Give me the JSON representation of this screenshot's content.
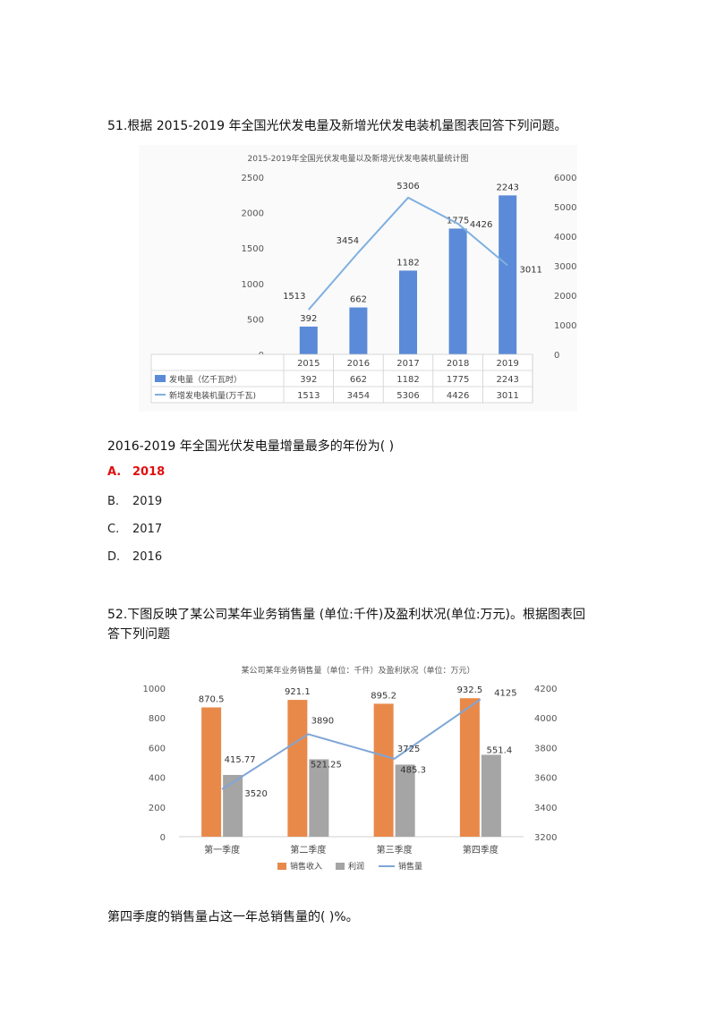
{
  "q51": {
    "stem": "51.根据 2015-2019 年全国光伏发电量及新增光伏发电装机量图表回答下列问题。",
    "question": "2016-2019 年全国光伏发电量增量最多的年份为(    )",
    "options": [
      {
        "letter": "A.",
        "text": "2018"
      },
      {
        "letter": "B.",
        "text": "2019"
      },
      {
        "letter": "C.",
        "text": "2017"
      },
      {
        "letter": "D.",
        "text": "2016"
      }
    ],
    "answer_color": "#e01010"
  },
  "q52": {
    "stem_line1": "52.下图反映了某公司某年业务销售量 (单位:千件)及盈利状况(单位:万元)。根据图表回",
    "stem_line2": "答下列问题",
    "question": "第四季度的销售量占这一年总销售量的(    )%。"
  },
  "chart_data": [
    {
      "type": "bar",
      "title": "2015-2019年全国光伏发电量以及新增光伏发电装机量统计图",
      "categories": [
        "2015",
        "2016",
        "2017",
        "2018",
        "2019"
      ],
      "series": [
        {
          "name": "发电量（亿千瓦时）",
          "kind": "bar",
          "axis": "left",
          "color": "#5b8ad8",
          "values": [
            392,
            662,
            1182,
            1775,
            2243
          ]
        },
        {
          "name": "新增发电装机量(万千瓦)",
          "kind": "line",
          "axis": "right",
          "color": "#7fb0e0",
          "values": [
            1513,
            3454,
            5306,
            4426,
            3011
          ]
        }
      ],
      "y_left": {
        "min": 0,
        "max": 2500,
        "ticks": [
          0,
          500,
          1000,
          1500,
          2000,
          2500
        ]
      },
      "y_right": {
        "min": 0,
        "max": 6000,
        "ticks": [
          0,
          1000,
          2000,
          3000,
          4000,
          5000,
          6000
        ]
      },
      "data_table": true
    },
    {
      "type": "bar",
      "title": "某公司某年业务销售量（单位：千件）及盈利状况（单位：万元）",
      "categories": [
        "第一季度",
        "第二季度",
        "第三季度",
        "第四季度"
      ],
      "series": [
        {
          "name": "销售收入",
          "kind": "bar",
          "axis": "left",
          "color": "#e8894a",
          "values": [
            870.5,
            921.1,
            895.2,
            932.5
          ],
          "labels": [
            "870.5",
            "921.1",
            "895.2",
            "932.5"
          ]
        },
        {
          "name": "利润",
          "kind": "bar",
          "axis": "left",
          "color": "#a5a5a5",
          "values": [
            415.77,
            521.25,
            485.3,
            551.4
          ],
          "labels": [
            "415.77",
            "521.25",
            "485.3",
            "551.4"
          ]
        },
        {
          "name": "销售量",
          "kind": "line",
          "axis": "right",
          "color": "#7fa6d6",
          "values": [
            3520,
            3890,
            3725,
            4125
          ],
          "labels": [
            "3520",
            "3890",
            "3725",
            "4125"
          ]
        }
      ],
      "y_left": {
        "min": 0,
        "max": 1000,
        "ticks": [
          0,
          200,
          400,
          600,
          800,
          1000
        ]
      },
      "y_right": {
        "min": 3200,
        "max": 4200,
        "ticks": [
          3200,
          3400,
          3600,
          3800,
          4000,
          4200
        ]
      },
      "legend": "bottom"
    }
  ]
}
